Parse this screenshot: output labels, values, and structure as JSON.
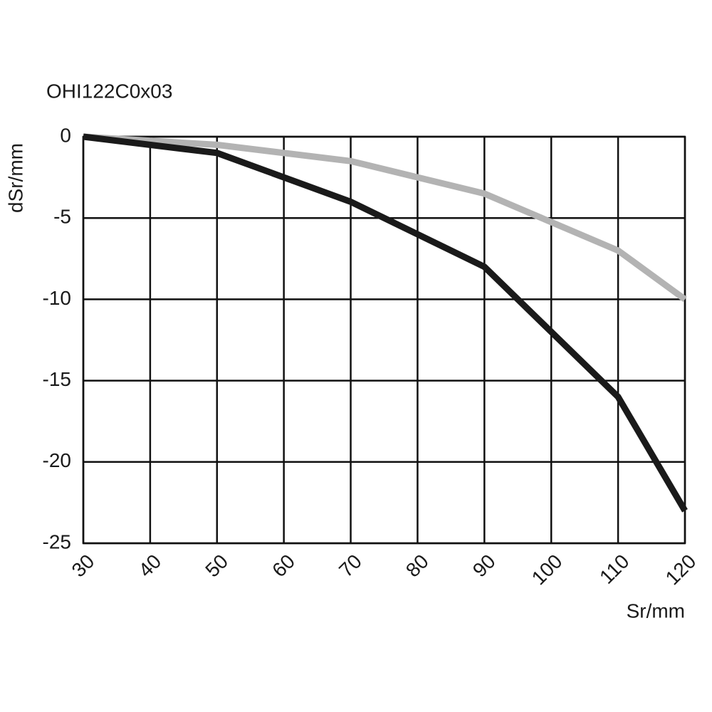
{
  "chart_data": {
    "type": "line",
    "title": "OHI122C0x03",
    "x_label": "Sr/mm",
    "y_label": "dSr/mm",
    "x": [
      30,
      50,
      70,
      90,
      110,
      120
    ],
    "series": [
      {
        "color": "#1a1a1a",
        "values": [
          0,
          -1,
          -4,
          -8,
          -16,
          -23
        ]
      },
      {
        "color": "#b3b3b3",
        "values": [
          0,
          -0.5,
          -1.5,
          -3.5,
          -7,
          -10
        ]
      }
    ],
    "xlim": [
      30,
      120
    ],
    "xticks": [
      30,
      40,
      50,
      60,
      70,
      80,
      90,
      100,
      110,
      120
    ],
    "ylim": [
      -25,
      0
    ],
    "yticks": [
      0,
      -5,
      -10,
      -15,
      -20,
      -25
    ],
    "grid": true
  }
}
